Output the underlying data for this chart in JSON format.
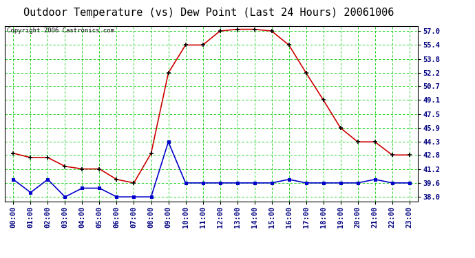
{
  "title": "Outdoor Temperature (vs) Dew Point (Last 24 Hours) 20061006",
  "copyright": "Copyright 2006 Castronics.com",
  "hours": [
    "00:00",
    "01:00",
    "02:00",
    "03:00",
    "04:00",
    "05:00",
    "06:00",
    "07:00",
    "08:00",
    "09:00",
    "10:00",
    "11:00",
    "12:00",
    "13:00",
    "14:00",
    "15:00",
    "16:00",
    "17:00",
    "18:00",
    "19:00",
    "20:00",
    "21:00",
    "22:00",
    "23:00"
  ],
  "temp": [
    43.0,
    42.5,
    42.5,
    41.5,
    41.2,
    41.2,
    40.0,
    39.6,
    43.0,
    52.2,
    55.4,
    55.4,
    57.0,
    57.2,
    57.2,
    57.0,
    55.4,
    52.2,
    49.1,
    45.9,
    44.3,
    44.3,
    42.8,
    42.8
  ],
  "dew": [
    40.0,
    38.5,
    40.0,
    38.0,
    39.0,
    39.0,
    38.0,
    38.0,
    38.0,
    44.3,
    39.6,
    39.6,
    39.6,
    39.6,
    39.6,
    39.6,
    40.0,
    39.6,
    39.6,
    39.6,
    39.6,
    40.0,
    39.6,
    39.6
  ],
  "temp_color": "#cc0000",
  "dew_color": "#0000cc",
  "bg_color": "#ffffff",
  "grid_color": "#00cc00",
  "yticks": [
    38.0,
    39.6,
    41.2,
    42.8,
    44.3,
    45.9,
    47.5,
    49.1,
    50.7,
    52.2,
    53.8,
    55.4,
    57.0
  ],
  "ymin": 37.5,
  "ymax": 57.6,
  "title_fontsize": 11,
  "tick_fontsize": 7.5,
  "copyright_fontsize": 6.5
}
